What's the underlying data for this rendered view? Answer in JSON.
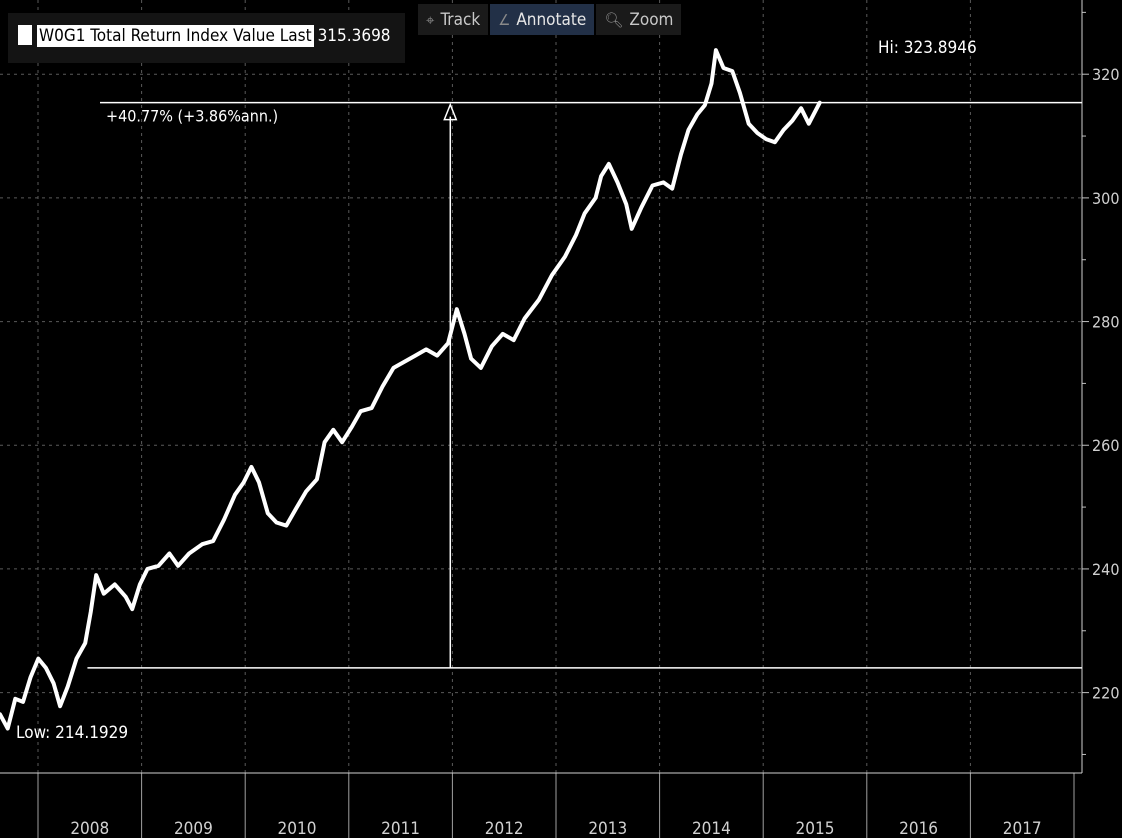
{
  "toolbar": {
    "items": [
      {
        "label": "Track",
        "icon": "crosshair-icon",
        "active": false
      },
      {
        "label": "Annotate",
        "icon": "pencil-icon",
        "active": true
      },
      {
        "label": "Zoom",
        "icon": "magnifier-icon",
        "active": false
      }
    ]
  },
  "legend": {
    "series_name": "W0G1 Total Return Index Value Last",
    "last_value": "315.3698",
    "swatch_color": "#ffffff"
  },
  "chart_data": {
    "type": "line",
    "title": "",
    "xlabel": "",
    "ylabel": "",
    "xlim": [
      2007.65,
      2017.55
    ],
    "ylim": [
      207,
      332
    ],
    "y_ticks": [
      220,
      240,
      260,
      280,
      300,
      320
    ],
    "x_tick_labels": [
      "2008",
      "2009",
      "2010",
      "2011",
      "2012",
      "2013",
      "2014",
      "2015",
      "2016",
      "2017"
    ],
    "grid": true,
    "background": "#000000",
    "line_color": "#ffffff",
    "series": [
      {
        "values": [
          [
            2007.65,
            216.5
          ],
          [
            2007.72,
            214.2
          ],
          [
            2007.79,
            219.0
          ],
          [
            2007.86,
            218.5
          ],
          [
            2007.93,
            222.5
          ],
          [
            2008.0,
            225.5
          ],
          [
            2008.07,
            224.0
          ],
          [
            2008.14,
            221.5
          ],
          [
            2008.2,
            217.8
          ],
          [
            2008.27,
            221.0
          ],
          [
            2008.35,
            225.5
          ],
          [
            2008.43,
            228.0
          ],
          [
            2008.48,
            233.0
          ],
          [
            2008.53,
            239.0
          ],
          [
            2008.6,
            236.0
          ],
          [
            2008.7,
            237.5
          ],
          [
            2008.8,
            235.5
          ],
          [
            2008.86,
            233.5
          ],
          [
            2008.93,
            237.5
          ],
          [
            2009.0,
            240.0
          ],
          [
            2009.1,
            240.5
          ],
          [
            2009.2,
            242.5
          ],
          [
            2009.28,
            240.5
          ],
          [
            2009.38,
            242.5
          ],
          [
            2009.5,
            244.0
          ],
          [
            2009.6,
            244.5
          ],
          [
            2009.7,
            248.0
          ],
          [
            2009.8,
            252.0
          ],
          [
            2009.88,
            254.0
          ],
          [
            2009.95,
            256.5
          ],
          [
            2010.02,
            254.0
          ],
          [
            2010.1,
            249.0
          ],
          [
            2010.18,
            247.5
          ],
          [
            2010.27,
            247.0
          ],
          [
            2010.35,
            249.5
          ],
          [
            2010.45,
            252.5
          ],
          [
            2010.55,
            254.5
          ],
          [
            2010.62,
            260.5
          ],
          [
            2010.7,
            262.5
          ],
          [
            2010.78,
            260.5
          ],
          [
            2010.87,
            263.0
          ],
          [
            2010.95,
            265.5
          ],
          [
            2011.05,
            266.0
          ],
          [
            2011.15,
            269.5
          ],
          [
            2011.25,
            272.5
          ],
          [
            2011.35,
            273.5
          ],
          [
            2011.45,
            274.5
          ],
          [
            2011.55,
            275.5
          ],
          [
            2011.65,
            274.5
          ],
          [
            2011.75,
            276.5
          ],
          [
            2011.83,
            282.0
          ],
          [
            2011.9,
            278.0
          ],
          [
            2011.96,
            274.0
          ],
          [
            2012.05,
            272.5
          ],
          [
            2012.15,
            276.0
          ],
          [
            2012.25,
            278.0
          ],
          [
            2012.35,
            277.0
          ],
          [
            2012.45,
            280.5
          ],
          [
            2012.58,
            283.5
          ],
          [
            2012.7,
            287.5
          ],
          [
            2012.82,
            290.5
          ],
          [
            2012.92,
            294.0
          ],
          [
            2013.0,
            297.5
          ],
          [
            2013.1,
            300.0
          ],
          [
            2013.15,
            303.5
          ],
          [
            2013.22,
            305.5
          ],
          [
            2013.3,
            302.5
          ],
          [
            2013.38,
            299.0
          ],
          [
            2013.43,
            295.0
          ],
          [
            2013.52,
            298.5
          ],
          [
            2013.62,
            302.0
          ],
          [
            2013.72,
            302.5
          ],
          [
            2013.8,
            301.5
          ],
          [
            2013.88,
            307.0
          ],
          [
            2013.95,
            311.0
          ],
          [
            2014.03,
            313.5
          ],
          [
            2014.1,
            315.0
          ],
          [
            2014.16,
            318.5
          ],
          [
            2014.2,
            323.9
          ],
          [
            2014.27,
            321.0
          ],
          [
            2014.35,
            320.5
          ],
          [
            2014.42,
            317.0
          ],
          [
            2014.5,
            312.0
          ],
          [
            2014.58,
            310.5
          ],
          [
            2014.66,
            309.5
          ],
          [
            2014.74,
            309.0
          ],
          [
            2014.82,
            311.0
          ],
          [
            2014.9,
            312.5
          ],
          [
            2014.98,
            314.5
          ],
          [
            2015.05,
            312.0
          ],
          [
            2015.15,
            315.4
          ]
        ]
      }
    ],
    "annotations": {
      "high_label": "Hi: 323.8946",
      "low_label": "Low: 214.1929",
      "change_label": "+40.77% (+3.86%ann.)",
      "start_level": 224.0,
      "end_level": 315.4,
      "arrow_x": 2011.77,
      "segment_start_x": 2008.45,
      "segment_end_x": 2017.55
    }
  }
}
